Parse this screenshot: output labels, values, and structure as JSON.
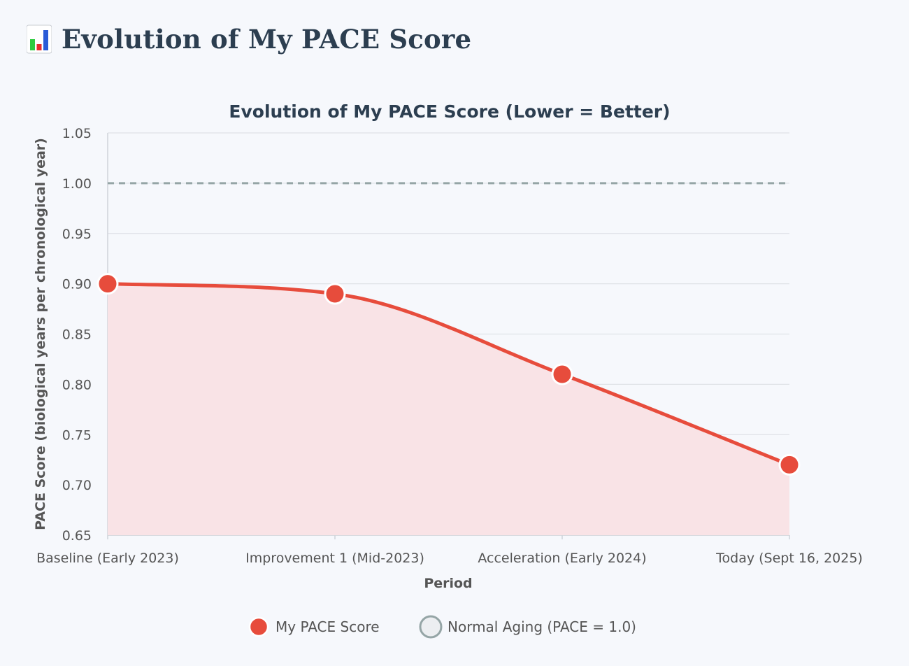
{
  "header": {
    "icon": "bar-chart-icon",
    "title": "Evolution of My PACE Score"
  },
  "chart_data": {
    "type": "line",
    "title": "Evolution of My PACE Score (Lower = Better)",
    "xlabel": "Period",
    "ylabel": "PACE Score (biological years per chronological year)",
    "categories": [
      "Baseline (Early 2023)",
      "Improvement 1 (Mid-2023)",
      "Acceleration (Early 2024)",
      "Today (Sept 16, 2025)"
    ],
    "series": [
      {
        "name": "My PACE Score",
        "values": [
          0.9,
          0.89,
          0.81,
          0.72
        ],
        "color": "#e74c3c",
        "fill": "#f9e3e6",
        "smooth": true,
        "filled": true
      }
    ],
    "reference_line": {
      "name": "Normal Aging (PACE = 1.0)",
      "value": 1.0,
      "color": "#95a5a6",
      "style": "dashed"
    },
    "ylim": [
      0.65,
      1.05
    ],
    "yticks": [
      "0.65",
      "0.70",
      "0.75",
      "0.80",
      "0.85",
      "0.90",
      "0.95",
      "1.00",
      "1.05"
    ],
    "grid": true,
    "legend_position": "bottom"
  }
}
